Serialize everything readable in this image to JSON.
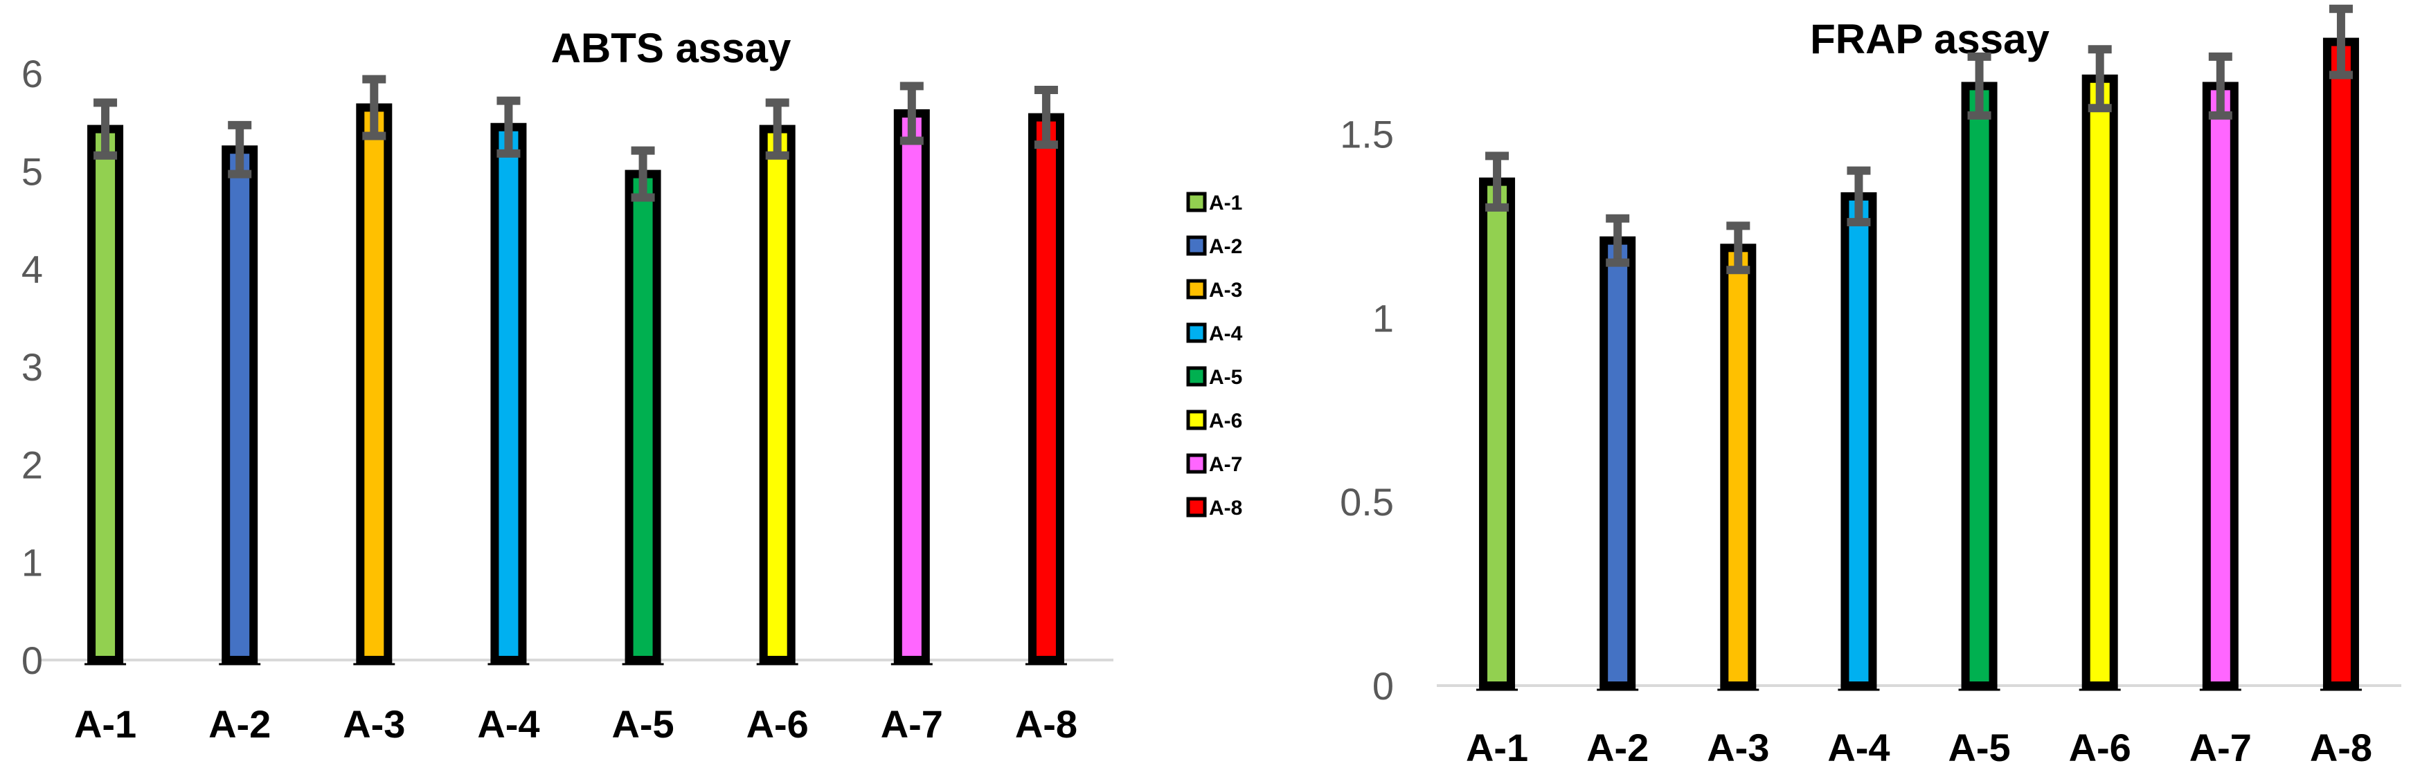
{
  "chart_data": [
    {
      "type": "bar",
      "title": "ABTS assay",
      "xlabel": "",
      "ylabel": "",
      "categories": [
        "A-1",
        "A-2",
        "A-3",
        "A-4",
        "A-5",
        "A-6",
        "A-7",
        "A-8"
      ],
      "values": [
        5.43,
        5.22,
        5.65,
        5.45,
        4.97,
        5.43,
        5.59,
        5.55
      ],
      "errors": [
        0.27,
        0.25,
        0.29,
        0.27,
        0.24,
        0.27,
        0.28,
        0.28
      ],
      "colors": [
        "#92D050",
        "#4472C4",
        "#FFC000",
        "#00B0F0",
        "#00B050",
        "#FFFF00",
        "#FF66FF",
        "#FF0000"
      ],
      "ylim": [
        0,
        6
      ],
      "yticks": [
        "0",
        "1",
        "2",
        "3",
        "4",
        "5",
        "6"
      ],
      "grid": false,
      "legend": {
        "position": "right",
        "entries": [
          "A-1",
          "A-2",
          "A-3",
          "A-4",
          "A-5",
          "A-6",
          "A-7",
          "A-8"
        ]
      }
    },
    {
      "type": "bar",
      "title": "FRAP assay",
      "xlabel": "",
      "ylabel": "",
      "categories": [
        "A-1",
        "A-2",
        "A-3",
        "A-4",
        "A-5",
        "A-6",
        "A-7",
        "A-8"
      ],
      "values": [
        1.37,
        1.21,
        1.19,
        1.33,
        1.63,
        1.65,
        1.63,
        1.75
      ],
      "errors": [
        0.07,
        0.06,
        0.06,
        0.07,
        0.08,
        0.08,
        0.08,
        0.09
      ],
      "colors": [
        "#92D050",
        "#4472C4",
        "#FFC000",
        "#00B0F0",
        "#00B050",
        "#FFFF00",
        "#FF66FF",
        "#FF0000"
      ],
      "ylim": [
        0,
        1.8
      ],
      "yticks": [
        "0",
        "0.5",
        "1",
        "1.5"
      ],
      "grid": false
    }
  ]
}
